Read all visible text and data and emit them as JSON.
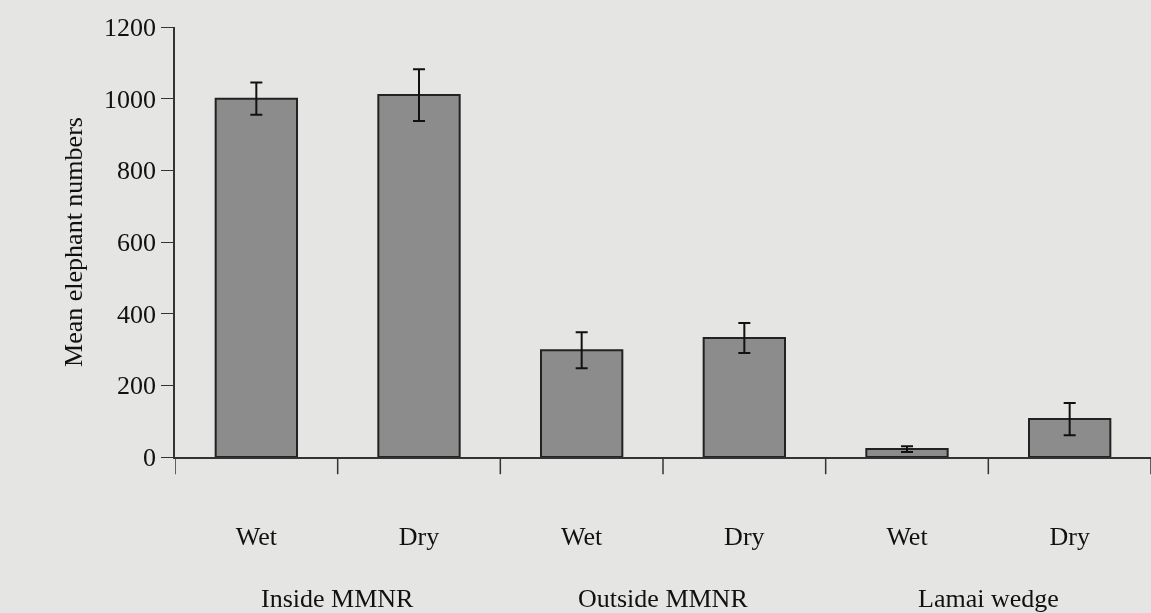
{
  "chart_data": {
    "type": "bar",
    "ylabel": "Mean elephant numbers",
    "categories": [
      "Wet",
      "Dry",
      "Wet",
      "Dry",
      "Wet",
      "Dry"
    ],
    "values": [
      1000,
      1010,
      298,
      332,
      22,
      106
    ],
    "errors": [
      45,
      72,
      50,
      42,
      8,
      45
    ],
    "color": "#8c8c8c",
    "ylim": [
      0,
      1200
    ],
    "yticks": [
      0,
      200,
      400,
      600,
      800,
      1000,
      1200
    ],
    "grid": false,
    "annotations": [
      "Inside MMNR",
      "Outside MMNR",
      "Lamai wedge"
    ]
  }
}
